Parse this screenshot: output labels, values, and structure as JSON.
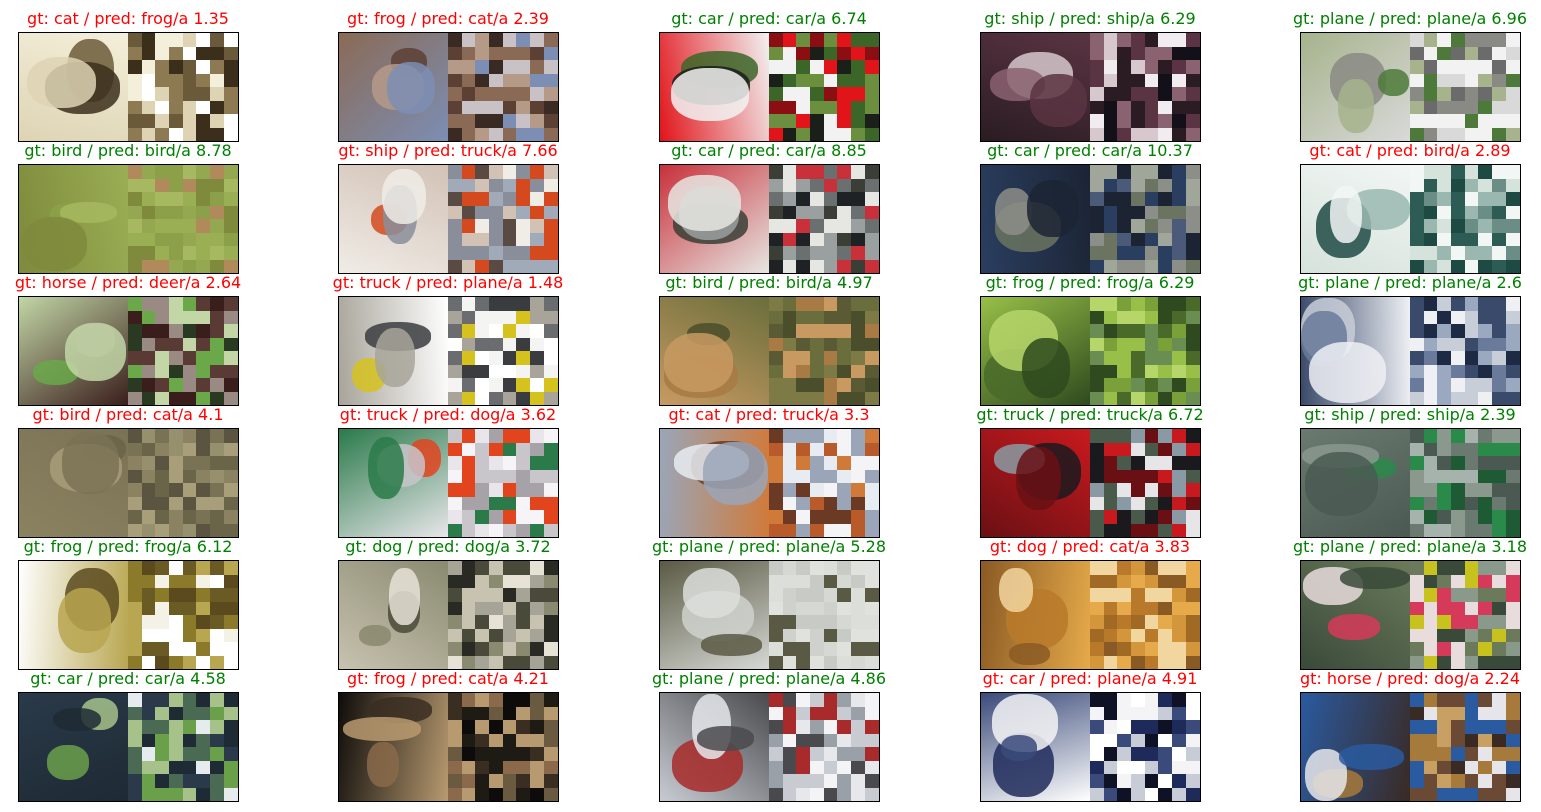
{
  "colors": {
    "correct": "#008000",
    "incorrect": "#ff0000"
  },
  "panels": [
    {
      "row": 0,
      "col": 0,
      "gt": "cat",
      "pred": "frog",
      "a": "1.35",
      "caption": "gt: cat / pred: frog/a 1.35",
      "correct": false,
      "palette": [
        "#f4efda",
        "#6b5a3a",
        "#3b2f1c",
        "#ded4b4",
        "#8d7a52",
        "#ffffff"
      ]
    },
    {
      "row": 0,
      "col": 1,
      "gt": "frog",
      "pred": "cat",
      "a": "2.39",
      "caption": "gt: frog / pred: cat/a 2.39",
      "correct": false,
      "palette": [
        "#8a6a55",
        "#5c4034",
        "#b59a88",
        "#7c8eb4",
        "#c8c2c6",
        "#3a2a24"
      ]
    },
    {
      "row": 0,
      "col": 2,
      "gt": "car",
      "pred": "car",
      "a": "6.74",
      "caption": "gt: car / pred: car/a 6.74",
      "correct": true,
      "palette": [
        "#e1141a",
        "#3b6628",
        "#1a1f1a",
        "#f2f2f2",
        "#8a0e12",
        "#6b8f3f"
      ]
    },
    {
      "row": 0,
      "col": 3,
      "gt": "ship",
      "pred": "ship",
      "a": "6.29",
      "caption": "gt: ship / pred: ship/a 6.29",
      "correct": true,
      "palette": [
        "#2a1c22",
        "#d6c8cc",
        "#8a6270",
        "#5a3442",
        "#f1ecef",
        "#14101a"
      ]
    },
    {
      "row": 0,
      "col": 4,
      "gt": "plane",
      "pred": "plane",
      "a": "6.96",
      "caption": "gt: plane / pred: plane/a 6.96",
      "correct": true,
      "palette": [
        "#d9d9d9",
        "#8a8a84",
        "#4d7a3a",
        "#a6b38c",
        "#f2f2f2",
        "#6b6b6b"
      ]
    },
    {
      "row": 1,
      "col": 0,
      "gt": "bird",
      "pred": "bird",
      "a": "8.78",
      "caption": "gt: bird / pred: bird/a 8.78",
      "correct": true,
      "palette": [
        "#9aae54",
        "#8ca04a",
        "#a6b860",
        "#7f8a3c",
        "#b08a5a",
        "#94a852"
      ]
    },
    {
      "row": 1,
      "col": 1,
      "gt": "ship",
      "pred": "truck",
      "a": "7.66",
      "caption": "gt: ship / pred: truck/a 7.66",
      "correct": false,
      "palette": [
        "#d2c2b6",
        "#d44a1e",
        "#8a8e9a",
        "#f0ece6",
        "#5a4a44",
        "#a0aab8"
      ]
    },
    {
      "row": 1,
      "col": 2,
      "gt": "car",
      "pred": "car",
      "a": "8.85",
      "caption": "gt: car / pred: car/a 8.85",
      "correct": true,
      "palette": [
        "#c8303a",
        "#3a3e36",
        "#9aa0a0",
        "#e6e6e2",
        "#6a7070",
        "#1e2224"
      ]
    },
    {
      "row": 1,
      "col": 3,
      "gt": "car",
      "pred": "car",
      "a": "10.37",
      "caption": "gt: car / pred: car/a 10.37",
      "correct": true,
      "palette": [
        "#2a3e60",
        "#6a7460",
        "#8c8e88",
        "#1c2434",
        "#4a5a78",
        "#a0a69a"
      ]
    },
    {
      "row": 1,
      "col": 4,
      "gt": "cat",
      "pred": "bird",
      "a": "2.89",
      "caption": "gt: cat / pred: bird/a 2.89",
      "correct": false,
      "palette": [
        "#d6e2dc",
        "#1e4a44",
        "#9ab8b0",
        "#f2f6f4",
        "#2c5c54",
        "#6a8e86"
      ]
    },
    {
      "row": 2,
      "col": 0,
      "gt": "horse",
      "pred": "deer",
      "a": "2.64",
      "caption": "gt: horse / pred: deer/a 2.64",
      "correct": false,
      "palette": [
        "#3a1e1c",
        "#6aa84a",
        "#9a8a84",
        "#c2d6a6",
        "#5a3a34",
        "#2a3a22"
      ]
    },
    {
      "row": 2,
      "col": 1,
      "gt": "truck",
      "pred": "plane",
      "a": "1.48",
      "caption": "gt: truck / pred: plane/a 1.48",
      "correct": false,
      "palette": [
        "#ffffff",
        "#d6c21e",
        "#3a3c40",
        "#a8a49a",
        "#f4f4f2",
        "#6a6c70"
      ]
    },
    {
      "row": 2,
      "col": 2,
      "gt": "bird",
      "pred": "bird",
      "a": "4.97",
      "caption": "gt: bird / pred: bird/a 4.97",
      "correct": true,
      "palette": [
        "#6a6e3c",
        "#a87a44",
        "#4a4e2a",
        "#c89a62",
        "#7e7a46",
        "#5a5a34"
      ]
    },
    {
      "row": 2,
      "col": 3,
      "gt": "frog",
      "pred": "frog",
      "a": "6.29",
      "caption": "gt: frog / pred: frog/a 6.29",
      "correct": true,
      "palette": [
        "#98c048",
        "#4a6a2a",
        "#b6d66a",
        "#2e4a1e",
        "#7aa03a",
        "#6a8e52"
      ]
    },
    {
      "row": 2,
      "col": 4,
      "gt": "plane",
      "pred": "plane",
      "a": "2.6",
      "caption": "gt: plane / pred: plane/a 2.6",
      "correct": true,
      "palette": [
        "#3a4a6a",
        "#c8ced8",
        "#6a7a9a",
        "#eef0f4",
        "#1e2a44",
        "#9aa8c0"
      ]
    },
    {
      "row": 3,
      "col": 0,
      "gt": "bird",
      "pred": "cat",
      "a": "4.1",
      "caption": "gt: bird / pred: cat/a 4.1",
      "correct": false,
      "palette": [
        "#8a8260",
        "#6a6448",
        "#a89e7a",
        "#7a7254",
        "#5a5440",
        "#96906e"
      ]
    },
    {
      "row": 3,
      "col": 1,
      "gt": "truck",
      "pred": "dog",
      "a": "3.62",
      "caption": "gt: truck / pred: dog/a 3.62",
      "correct": false,
      "palette": [
        "#e8e6ea",
        "#e2441e",
        "#c8c6ca",
        "#2a7a4a",
        "#a6a2a8",
        "#f6f4f6"
      ]
    },
    {
      "row": 3,
      "col": 2,
      "gt": "cat",
      "pred": "truck",
      "a": "3.3",
      "caption": "gt: cat / pred: truck/a 3.3",
      "correct": false,
      "palette": [
        "#d07a3a",
        "#6a3a24",
        "#e6ecf2",
        "#9aa6b8",
        "#b85a2a",
        "#f4f4f6"
      ]
    },
    {
      "row": 3,
      "col": 3,
      "gt": "truck",
      "pred": "truck",
      "a": "6.72",
      "caption": "gt: truck / pred: truck/a 6.72",
      "correct": true,
      "palette": [
        "#c81a1e",
        "#1a1a1e",
        "#8a9aa4",
        "#6a1014",
        "#e6e6e8",
        "#4a5a4a"
      ]
    },
    {
      "row": 3,
      "col": 4,
      "gt": "ship",
      "pred": "ship",
      "a": "2.39",
      "caption": "gt: ship / pred: ship/a 2.39",
      "correct": true,
      "palette": [
        "#6a7a70",
        "#2a8a4a",
        "#8a988e",
        "#4a5a52",
        "#a6b2ac",
        "#1e5a34"
      ]
    },
    {
      "row": 4,
      "col": 0,
      "gt": "frog",
      "pred": "frog",
      "a": "6.12",
      "caption": "gt: frog / pred: frog/a 6.12",
      "correct": true,
      "palette": [
        "#ffffff",
        "#8a7a2a",
        "#5a4a1e",
        "#b8a650",
        "#f4f2e6",
        "#6a5a24"
      ]
    },
    {
      "row": 4,
      "col": 1,
      "gt": "dog",
      "pred": "dog",
      "a": "3.72",
      "caption": "gt: dog / pred: dog/a 3.72",
      "correct": true,
      "palette": [
        "#c8c2b0",
        "#4a4a3a",
        "#e6e2d6",
        "#8a8a70",
        "#2a2a24",
        "#a6a496"
      ]
    },
    {
      "row": 4,
      "col": 2,
      "gt": "plane",
      "pred": "plane",
      "a": "5.28",
      "caption": "gt: plane / pred: plane/a 5.28",
      "correct": true,
      "palette": [
        "#d6d8d4",
        "#cfd1cd",
        "#dcdeda",
        "#5a5a44",
        "#c8cac6",
        "#e0e2de"
      ]
    },
    {
      "row": 4,
      "col": 3,
      "gt": "dog",
      "pred": "cat",
      "a": "3.83",
      "caption": "gt: dog / pred: cat/a 3.83",
      "correct": false,
      "palette": [
        "#e6aa4a",
        "#b87a2a",
        "#f2d6a0",
        "#8a5a24",
        "#d4963a",
        "#a06a24"
      ]
    },
    {
      "row": 4,
      "col": 4,
      "gt": "plane",
      "pred": "plane",
      "a": "3.18",
      "caption": "gt: plane / pred: plane/a 3.18",
      "correct": true,
      "palette": [
        "#6a7a5a",
        "#d63a5a",
        "#e8dcdc",
        "#3a4a3a",
        "#c8c21e",
        "#8a9a8a"
      ]
    },
    {
      "row": 5,
      "col": 0,
      "gt": "car",
      "pred": "car",
      "a": "4.58",
      "caption": "gt: car / pred: car/a 4.58",
      "correct": true,
      "palette": [
        "#2a3a4a",
        "#6aa04a",
        "#a6c28a",
        "#1e2a34",
        "#e6ecee",
        "#4a6a54"
      ]
    },
    {
      "row": 5,
      "col": 1,
      "gt": "frog",
      "pred": "cat",
      "a": "4.21",
      "caption": "gt: frog / pred: cat/a 4.21",
      "correct": false,
      "palette": [
        "#0e0c0a",
        "#8a6a4a",
        "#3a2e22",
        "#b89a70",
        "#1e1a14",
        "#6a5a40"
      ]
    },
    {
      "row": 5,
      "col": 2,
      "gt": "plane",
      "pred": "plane",
      "a": "4.86",
      "caption": "gt: plane / pred: plane/a 4.86",
      "correct": true,
      "palette": [
        "#c8ccd2",
        "#a82a2a",
        "#e6e8ec",
        "#4a4a4e",
        "#9aa0a8",
        "#f4f4f6"
      ]
    },
    {
      "row": 5,
      "col": 3,
      "gt": "car",
      "pred": "plane",
      "a": "4.91",
      "caption": "gt: car / pred: plane/a 4.91",
      "correct": false,
      "palette": [
        "#ffffff",
        "#1e2a5a",
        "#f4f4f6",
        "#3a4a7a",
        "#c8ccd6",
        "#0e1224"
      ]
    },
    {
      "row": 5,
      "col": 4,
      "gt": "horse",
      "pred": "dog",
      "a": "2.24",
      "caption": "gt: horse / pred: dog/a 2.24",
      "correct": false,
      "palette": [
        "#3a2a24",
        "#a67a3a",
        "#e6e6ea",
        "#2a5aa0",
        "#c8a064",
        "#6a4a34"
      ]
    }
  ]
}
